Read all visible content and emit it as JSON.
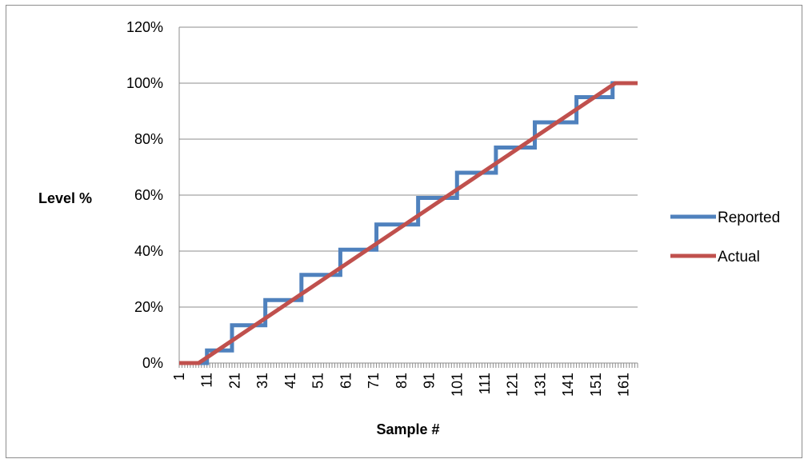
{
  "chart_data": {
    "type": "line",
    "title": "",
    "xlabel": "Sample #",
    "ylabel": "Level %",
    "x_tick_labels": [
      "1",
      "11",
      "21",
      "31",
      "41",
      "51",
      "61",
      "71",
      "81",
      "91",
      "101",
      "111",
      "121",
      "131",
      "141",
      "151",
      "161"
    ],
    "y_tick_labels": [
      "0%",
      "20%",
      "40%",
      "60%",
      "80%",
      "100%",
      "120%"
    ],
    "xlim": [
      1,
      166
    ],
    "ylim": [
      0,
      1.2
    ],
    "grid": "horizontal",
    "legend_position": "right",
    "series": [
      {
        "name": "Reported",
        "color": "#4f81bd",
        "step_transitions": [
          {
            "x": 11,
            "y": 0.045
          },
          {
            "x": 20,
            "y": 0.135
          },
          {
            "x": 32,
            "y": 0.225
          },
          {
            "x": 45,
            "y": 0.315
          },
          {
            "x": 59,
            "y": 0.405
          },
          {
            "x": 72,
            "y": 0.495
          },
          {
            "x": 87,
            "y": 0.59
          },
          {
            "x": 101,
            "y": 0.68
          },
          {
            "x": 115,
            "y": 0.77
          },
          {
            "x": 129,
            "y": 0.86
          },
          {
            "x": 144,
            "y": 0.95
          },
          {
            "x": 157,
            "y": 1.0
          }
        ]
      },
      {
        "name": "Actual",
        "color": "#c0504d",
        "points": [
          {
            "x": 1,
            "y": 0
          },
          {
            "x": 8,
            "y": 0
          },
          {
            "x": 158,
            "y": 1.0
          },
          {
            "x": 166,
            "y": 1.0
          }
        ]
      }
    ]
  }
}
